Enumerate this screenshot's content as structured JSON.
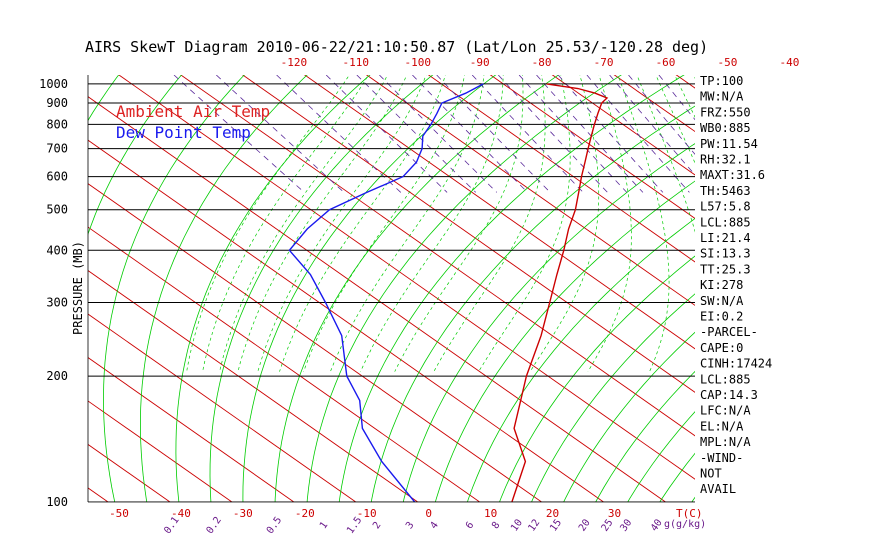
{
  "chart_data": {
    "type": "line",
    "title": "AIRS SkewT Diagram 2010-06-22/21:10:50.87 (Lat/Lon 25.53/-120.28 deg)",
    "ylabel": "PRESSURE (MB)",
    "xlabel": "T(C)",
    "mixing_ratio_unit": "g(g/kg)",
    "y_scale": "log",
    "ylim": [
      1050,
      100
    ],
    "xlim_bottom": [
      -55,
      43
    ],
    "skew_per_decade": 96.2,
    "pressure_ticks": [
      "100",
      "200",
      "300",
      "400",
      "500",
      "600",
      "700",
      "800",
      "900",
      "1000"
    ],
    "bottom_temp_ticks": [
      "-50",
      "-40",
      "-30",
      "-20",
      "-10",
      "0",
      "10",
      "20",
      "30"
    ],
    "top_temp_ticks": [
      "-120",
      "-110",
      "-100",
      "-90",
      "-80",
      "-70",
      "-60",
      "-50",
      "-40"
    ],
    "mixing_ratio_labels": [
      "0.1",
      "0.2",
      "0.5",
      "1",
      "1.5",
      "2",
      "3",
      "4",
      "6",
      "8",
      "10",
      "12",
      "15",
      "20",
      "25",
      "30",
      "40"
    ],
    "legend": [
      {
        "name": "Ambient Air Temp",
        "color": "#dd2222"
      },
      {
        "name": "Dew Point Temp",
        "color": "#1a1aee"
      }
    ],
    "legend_placement": "top-left",
    "grid": true,
    "colors": {
      "isotherms": "#cc0000",
      "dry_adiabats": "#00cc00",
      "moist_adiabats": "#00cc00",
      "mixing_ratio": "#5a2a9a",
      "isobars": "#000000"
    },
    "series": [
      {
        "name": "Ambient Air Temp",
        "color": "#cc0000",
        "points": [
          {
            "p": 1000,
            "t": 17.0
          },
          {
            "p": 975,
            "t": 21.0
          },
          {
            "p": 950,
            "t": 22.7
          },
          {
            "p": 925,
            "t": 23.5
          },
          {
            "p": 900,
            "t": 21.5
          },
          {
            "p": 850,
            "t": 18.5
          },
          {
            "p": 800,
            "t": 15.4
          },
          {
            "p": 750,
            "t": 12.2
          },
          {
            "p": 700,
            "t": 8.8
          },
          {
            "p": 650,
            "t": 5.2
          },
          {
            "p": 600,
            "t": 1.3
          },
          {
            "p": 550,
            "t": -2.8
          },
          {
            "p": 500,
            "t": -7.3
          },
          {
            "p": 450,
            "t": -12.8
          },
          {
            "p": 400,
            "t": -18.5
          },
          {
            "p": 350,
            "t": -25.2
          },
          {
            "p": 300,
            "t": -32.8
          },
          {
            "p": 250,
            "t": -41.8
          },
          {
            "p": 200,
            "t": -53.5
          },
          {
            "p": 175,
            "t": -60.0
          },
          {
            "p": 150,
            "t": -67.5
          },
          {
            "p": 125,
            "t": -73.3
          },
          {
            "p": 100,
            "t": -84.8
          }
        ]
      },
      {
        "name": "Dew Point Temp",
        "color": "#1a1aee",
        "points": [
          {
            "p": 1000,
            "t": 6.8
          },
          {
            "p": 950,
            "t": 1.8
          },
          {
            "p": 900,
            "t": -4.3
          },
          {
            "p": 850,
            "t": -7.5
          },
          {
            "p": 800,
            "t": -11.0
          },
          {
            "p": 750,
            "t": -15.0
          },
          {
            "p": 700,
            "t": -18.0
          },
          {
            "p": 650,
            "t": -22.0
          },
          {
            "p": 600,
            "t": -27.5
          },
          {
            "p": 550,
            "t": -37.0
          },
          {
            "p": 500,
            "t": -47.0
          },
          {
            "p": 450,
            "t": -55.0
          },
          {
            "p": 400,
            "t": -62.8
          },
          {
            "p": 350,
            "t": -65.0
          },
          {
            "p": 300,
            "t": -69.0
          },
          {
            "p": 250,
            "t": -74.0
          },
          {
            "p": 200,
            "t": -82.5
          },
          {
            "p": 175,
            "t": -86.0
          },
          {
            "p": 150,
            "t": -92.0
          },
          {
            "p": 125,
            "t": -96.5
          },
          {
            "p": 100,
            "t": -100.5
          }
        ]
      }
    ]
  },
  "indices": [
    "TP:100",
    "MW:N/A",
    "FRZ:550",
    "WB0:885",
    "PW:11.54",
    "RH:32.1",
    "MAXT:31.6",
    "TH:5463",
    "L57:5.8",
    "LCL:885",
    "LI:21.4",
    "SI:13.3",
    "TT:25.3",
    "KI:278",
    "SW:N/A",
    "EI:0.2",
    "-PARCEL-",
    "CAPE:0",
    "CINH:17424",
    "LCL:885",
    "CAP:14.3",
    "LFC:N/A",
    "EL:N/A",
    "MPL:N/A",
    "-WIND-",
    "NOT",
    "AVAIL"
  ]
}
